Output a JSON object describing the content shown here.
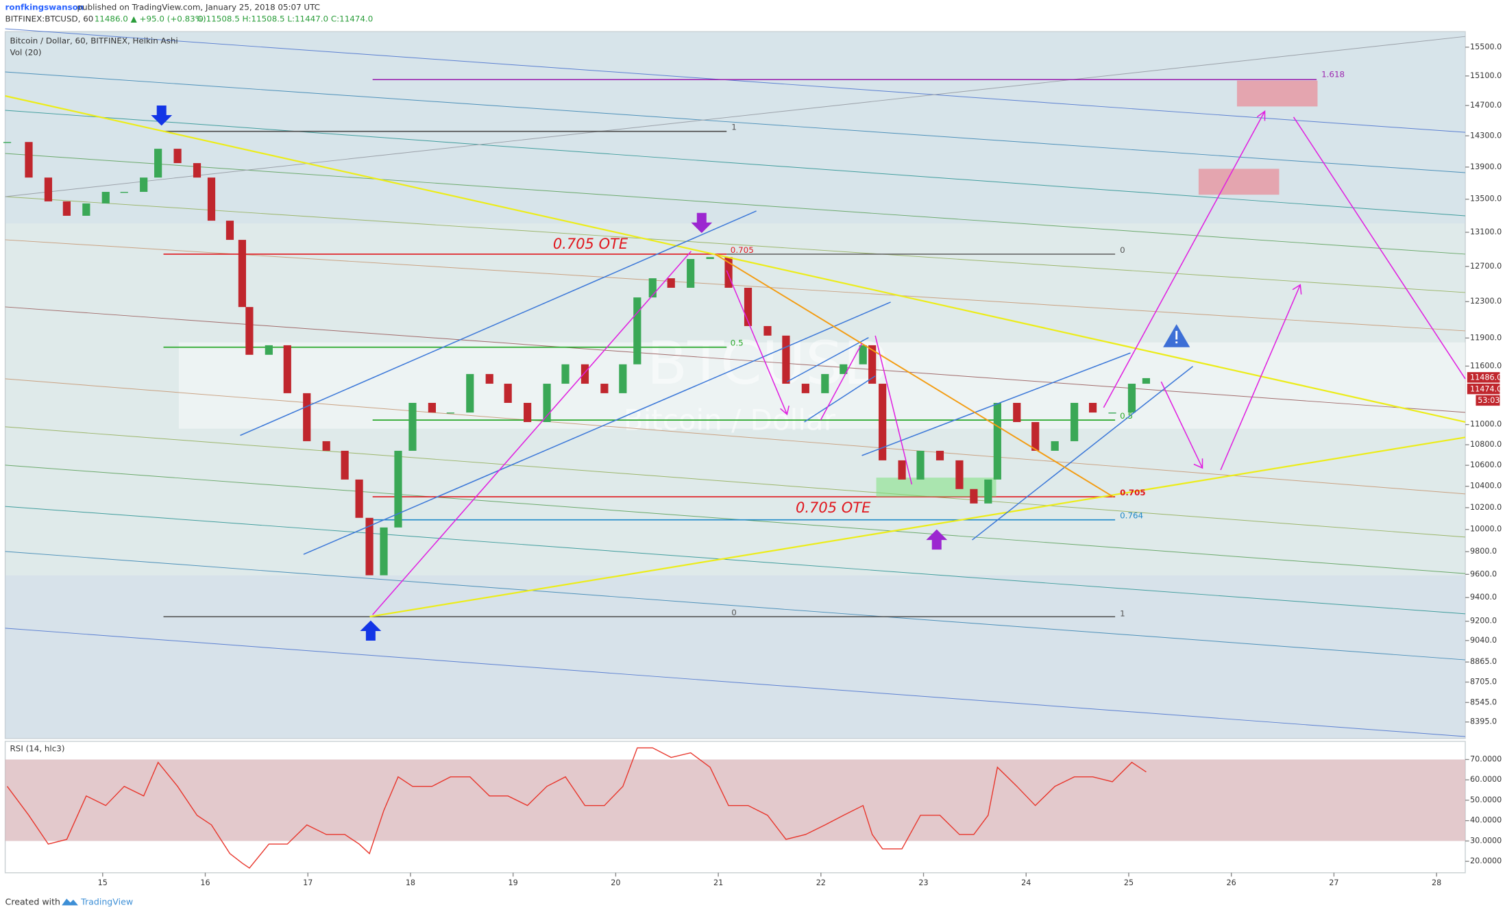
{
  "header": {
    "author": "ronfkingswanson",
    "published": "published on TradingView.com, January 25, 2018 05:07 UTC",
    "symbol": "BITFINEX:BTCUSD, 60",
    "quote": "11486.0 ▲ +95.0 (+0.83%)",
    "ohlc": "O:11508.5 H:11508.5 L:11447.0 C:11474.0"
  },
  "chart_data": [
    {
      "type": "candlestick",
      "title": "Bitcoin / Dollar, 60, BITFINEX, Heikin Ashi",
      "indicator": "Vol (20)",
      "watermark": "BTCUSD",
      "watermark_sub": "Bitcoin / Dollar",
      "x": [
        14.07,
        14.28,
        14.47,
        14.65,
        14.84,
        15.03,
        15.21,
        15.4,
        15.54,
        15.73,
        15.92,
        16.06,
        16.24,
        16.36,
        16.43,
        16.62,
        16.8,
        16.99,
        17.18,
        17.36,
        17.5,
        17.6,
        17.74,
        17.88,
        18.02,
        18.21,
        18.39,
        18.58,
        18.77,
        18.95,
        19.14,
        19.33,
        19.51,
        19.7,
        19.89,
        20.07,
        20.21,
        20.36,
        20.54,
        20.73,
        20.92,
        21.1,
        21.29,
        21.48,
        21.66,
        21.85,
        22.04,
        22.22,
        22.41,
        22.5,
        22.6,
        22.79,
        22.97,
        23.16,
        23.35,
        23.49,
        23.63,
        23.72,
        23.91,
        24.09,
        24.28,
        24.47,
        24.65,
        24.84,
        25.03,
        25.17
      ],
      "values": [
        14220,
        13768,
        13473,
        13298,
        13448,
        13590,
        13590,
        13768,
        14133,
        13950,
        13768,
        13239,
        13010,
        12240,
        11720,
        11822,
        11318,
        10835,
        10741,
        10464,
        10106,
        9592,
        10018,
        10741,
        11219,
        11121,
        11121,
        11517,
        11416,
        11219,
        11025,
        11416,
        11619,
        11416,
        11318,
        11619,
        12347,
        12564,
        12456,
        12786,
        12808,
        12456,
        12030,
        11926,
        11416,
        11318,
        11517,
        11619,
        11822,
        11416,
        10648,
        10464,
        10741,
        10648,
        10374,
        10239,
        10464,
        11219,
        11025,
        10741,
        10835,
        11219,
        11121,
        11121,
        11416,
        11474
      ],
      "up_color": "#3aa856",
      "down_color": "#c0262d",
      "xlim": [
        14.05,
        28.28
      ],
      "xticks": [
        15,
        16,
        17,
        18,
        19,
        20,
        21,
        22,
        23,
        24,
        25,
        26,
        27,
        28
      ],
      "ylim": [
        8270,
        15720
      ],
      "log_scale": true,
      "yticks": [
        {
          "value": 15500,
          "label": "15500.0"
        },
        {
          "value": 15100,
          "label": "15100.0"
        },
        {
          "value": 14700,
          "label": "14700.0"
        },
        {
          "value": 14300,
          "label": "14300.0"
        },
        {
          "value": 13900,
          "label": "13900.0"
        },
        {
          "value": 13500,
          "label": "13500.0"
        },
        {
          "value": 13100,
          "label": "13100.0"
        },
        {
          "value": 12700,
          "label": "12700.0"
        },
        {
          "value": 12300,
          "label": "12300.0"
        },
        {
          "value": 11900,
          "label": "11900.0"
        },
        {
          "value": 11600,
          "label": "11600.0"
        },
        {
          "value": 11000,
          "label": "11000.0"
        },
        {
          "value": 10800,
          "label": "10800.0"
        },
        {
          "value": 10600,
          "label": "10600.0"
        },
        {
          "value": 10400,
          "label": "10400.0"
        },
        {
          "value": 10200,
          "label": "10200.0"
        },
        {
          "value": 10000,
          "label": "10000.0"
        },
        {
          "value": 9800,
          "label": "9800.0"
        },
        {
          "value": 9600,
          "label": "9600.0"
        },
        {
          "value": 9400,
          "label": "9400.0"
        },
        {
          "value": 9200,
          "label": "9200.0"
        },
        {
          "value": 9040,
          "label": "9040.0"
        },
        {
          "value": 8865,
          "label": "8865.0"
        },
        {
          "value": 8705,
          "label": "8705.0"
        },
        {
          "value": 8545,
          "label": "8545.0"
        },
        {
          "value": 8395,
          "label": "8395.0"
        }
      ],
      "price_labels": [
        "11486.0",
        "11474.0",
        "53:03"
      ],
      "annotations": {
        "ote_top": "0.705 OTE",
        "ote_bottom": "0.705 OTE",
        "fib_a_1": "1",
        "fib_a_0705": "0.705",
        "fib_a_05": "0.5",
        "fib_a_0": "0",
        "fib_b_0": "0",
        "fib_b_1": "1",
        "fib_b_0705": "0.705",
        "fib_b_0764": "0.764",
        "fib_b_05": "0.5",
        "fib_ext": "1.618"
      }
    },
    {
      "type": "line",
      "title": "RSI (14, hlc3)",
      "x": [
        14.07,
        14.28,
        14.47,
        14.65,
        14.84,
        15.03,
        15.21,
        15.4,
        15.54,
        15.73,
        15.92,
        16.06,
        16.24,
        16.36,
        16.43,
        16.62,
        16.8,
        16.99,
        17.18,
        17.36,
        17.5,
        17.6,
        17.74,
        17.88,
        18.02,
        18.21,
        18.39,
        18.58,
        18.77,
        18.95,
        19.14,
        19.33,
        19.51,
        19.7,
        19.89,
        20.07,
        20.21,
        20.36,
        20.54,
        20.73,
        20.92,
        21.1,
        21.29,
        21.48,
        21.66,
        21.85,
        22.04,
        22.22,
        22.41,
        22.5,
        22.6,
        22.79,
        22.97,
        23.16,
        23.35,
        23.49,
        23.63,
        23.72,
        23.91,
        24.09,
        24.28,
        24.47,
        24.65,
        24.84,
        25.03,
        25.17
      ],
      "values": [
        56.8,
        42.6,
        28.5,
        30.8,
        52.1,
        47.4,
        56.8,
        52.1,
        68.6,
        56.8,
        42.6,
        37.9,
        23.8,
        19.1,
        16.7,
        28.5,
        28.5,
        37.9,
        33.2,
        33.2,
        28.5,
        23.8,
        45.0,
        61.5,
        56.8,
        56.8,
        61.5,
        61.5,
        52.1,
        52.1,
        47.4,
        56.8,
        61.5,
        47.4,
        47.4,
        56.8,
        75.7,
        75.7,
        71.0,
        73.3,
        66.2,
        47.4,
        47.4,
        42.6,
        30.8,
        33.2,
        37.9,
        42.6,
        47.4,
        33.2,
        26.1,
        26.1,
        42.6,
        42.6,
        33.2,
        33.2,
        42.6,
        66.2,
        56.8,
        47.4,
        56.8,
        61.5,
        61.5,
        59.1,
        68.6,
        63.9
      ],
      "color": "#e8352b",
      "band": [
        30,
        70
      ],
      "band_color": "#d9b7bb",
      "xlim": [
        14.05,
        28.28
      ],
      "ylim": [
        14.4,
        78.9
      ],
      "yticks": [
        {
          "value": 70,
          "label": "70.0000"
        },
        {
          "value": 60,
          "label": "60.0000"
        },
        {
          "value": 50,
          "label": "50.0000"
        },
        {
          "value": 40,
          "label": "40.0000"
        },
        {
          "value": 30,
          "label": "30.0000"
        },
        {
          "value": 20,
          "label": "20.0000"
        }
      ]
    }
  ],
  "footer": {
    "created": "Created with",
    "brand": "TradingView"
  }
}
